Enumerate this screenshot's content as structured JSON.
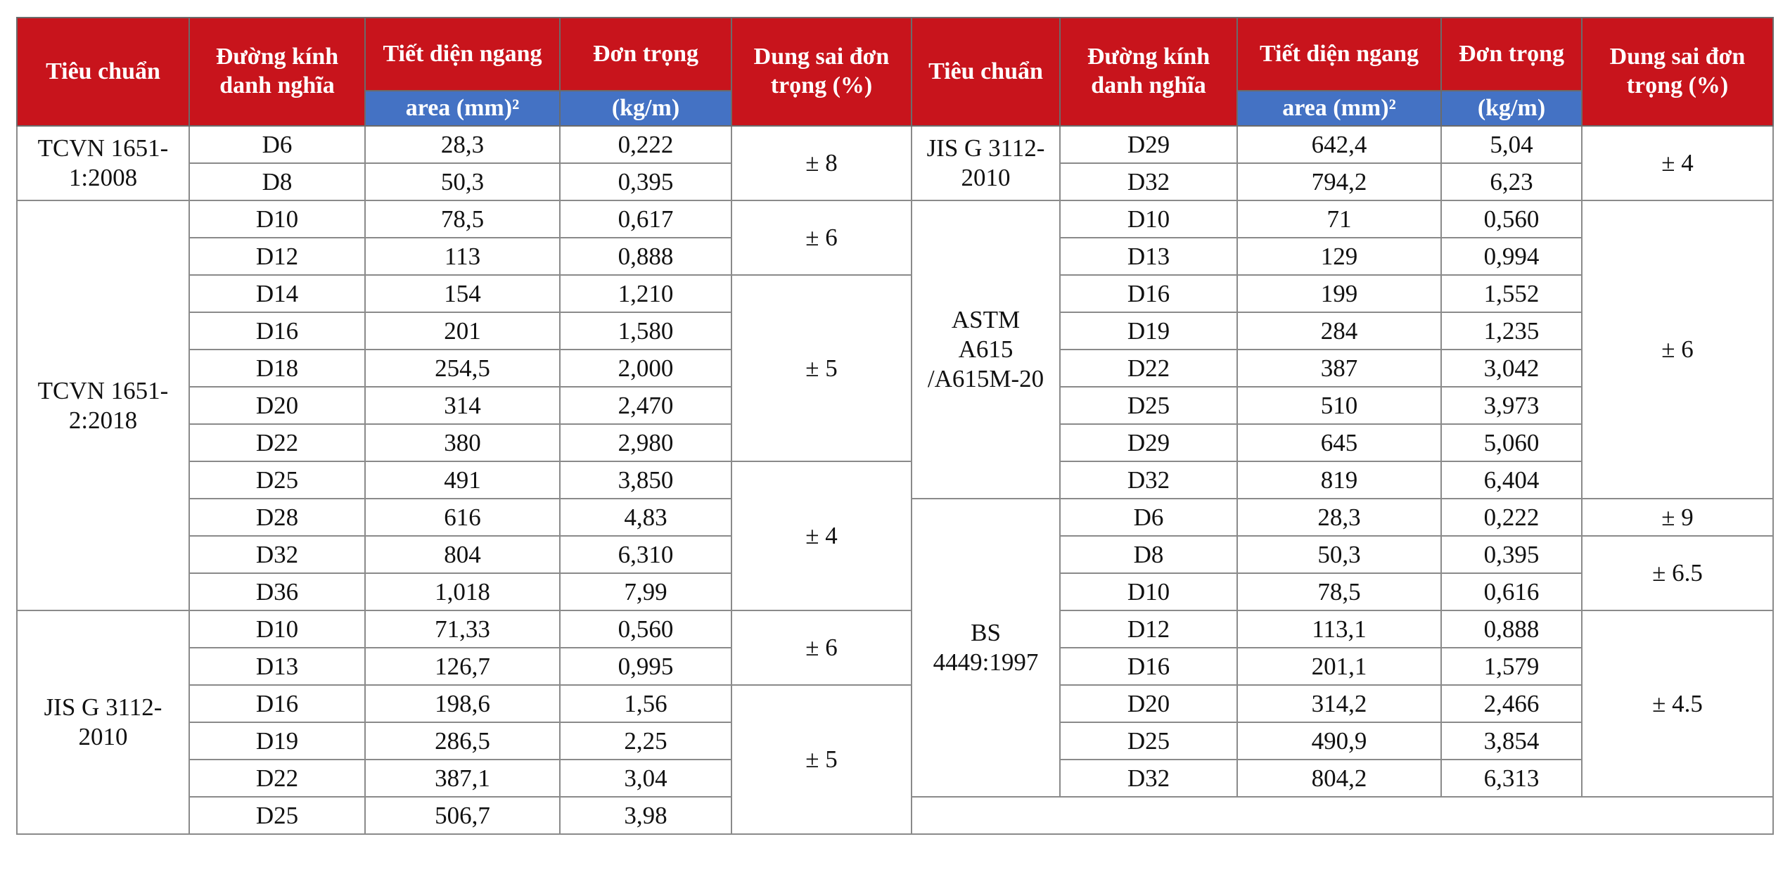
{
  "header": {
    "columns": [
      "Tiêu chuẩn",
      "Đường kính danh nghĩa",
      "Tiết diện ngang",
      "Đơn trọng",
      "Dung sai đơn trọng (%)"
    ],
    "units": [
      "area (mm)²",
      "(kg/m)"
    ]
  },
  "left": {
    "groups": [
      {
        "standard": "TCVN 1651-1:2008",
        "tolerance_groups": [
          {
            "tolerance": "± 8",
            "rows": [
              [
                "D6",
                "28,3",
                "0,222"
              ],
              [
                "D8",
                "50,3",
                "0,395"
              ]
            ]
          }
        ]
      },
      {
        "standard": "TCVN 1651-2:2018",
        "tolerance_groups": [
          {
            "tolerance": "± 6",
            "rows": [
              [
                "D10",
                "78,5",
                "0,617"
              ],
              [
                "D12",
                "113",
                "0,888"
              ]
            ]
          },
          {
            "tolerance": "± 5",
            "rows": [
              [
                "D14",
                "154",
                "1,210"
              ],
              [
                "D16",
                "201",
                "1,580"
              ],
              [
                "D18",
                "254,5",
                "2,000"
              ],
              [
                "D20",
                "314",
                "2,470"
              ],
              [
                "D22",
                "380",
                "2,980"
              ]
            ]
          },
          {
            "tolerance": "± 4",
            "rows": [
              [
                "D25",
                "491",
                "3,850"
              ],
              [
                "D28",
                "616",
                "4,83"
              ],
              [
                "D32",
                "804",
                "6,310"
              ],
              [
                "D36",
                "1,018",
                "7,99"
              ]
            ]
          }
        ]
      },
      {
        "standard": "JIS G 3112-2010",
        "tolerance_groups": [
          {
            "tolerance": "± 6",
            "rows": [
              [
                "D10",
                "71,33",
                "0,560"
              ],
              [
                "D13",
                "126,7",
                "0,995"
              ]
            ]
          },
          {
            "tolerance": "± 5",
            "rows": [
              [
                "D16",
                "198,6",
                "1,56"
              ],
              [
                "D19",
                "286,5",
                "2,25"
              ],
              [
                "D22",
                "387,1",
                "3,04"
              ],
              [
                "D25",
                "506,7",
                "3,98"
              ]
            ]
          }
        ]
      }
    ]
  },
  "right": {
    "groups": [
      {
        "standard": "JIS G 3112-2010",
        "tolerance_groups": [
          {
            "tolerance": "± 4",
            "rows": [
              [
                "D29",
                "642,4",
                "5,04"
              ],
              [
                "D32",
                "794,2",
                "6,23"
              ]
            ]
          }
        ]
      },
      {
        "standard": "ASTM A615 /A615M-20",
        "tolerance_groups": [
          {
            "tolerance": "± 6",
            "rows": [
              [
                "D10",
                "71",
                "0,560"
              ],
              [
                "D13",
                "129",
                "0,994"
              ],
              [
                "D16",
                "199",
                "1,552"
              ],
              [
                "D19",
                "284",
                "1,235"
              ],
              [
                "D22",
                "387",
                "3,042"
              ],
              [
                "D25",
                "510",
                "3,973"
              ],
              [
                "D29",
                "645",
                "5,060"
              ],
              [
                "D32",
                "819",
                "6,404"
              ]
            ]
          }
        ]
      },
      {
        "standard": "BS 4449:1997",
        "tolerance_groups": [
          {
            "tolerance": "± 9",
            "rows": [
              [
                "D6",
                "28,3",
                "0,222"
              ]
            ]
          },
          {
            "tolerance": "± 6.5",
            "rows": [
              [
                "D8",
                "50,3",
                "0,395"
              ],
              [
                "D10",
                "78,5",
                "0,616"
              ]
            ]
          },
          {
            "tolerance": "± 4.5",
            "rows": [
              [
                "D12",
                "113,1",
                "0,888"
              ],
              [
                "D16",
                "201,1",
                "1,579"
              ],
              [
                "D20",
                "314,2",
                "2,466"
              ],
              [
                "D25",
                "490,9",
                "3,854"
              ],
              [
                "D32",
                "804,2",
                "6,313"
              ]
            ]
          }
        ]
      }
    ]
  }
}
